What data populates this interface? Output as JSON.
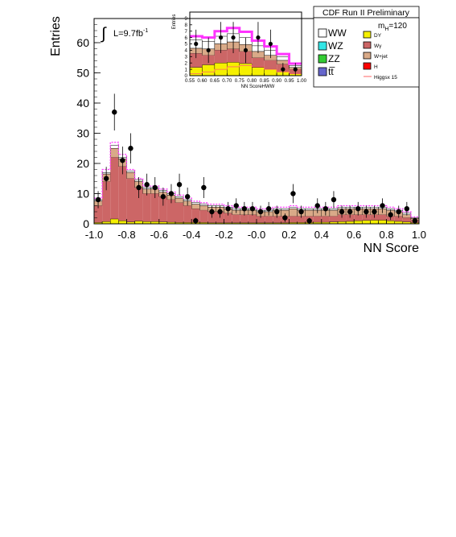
{
  "figure": {
    "header": "CDF Run II Preliminary",
    "mass_label_base": "m",
    "mass_label_sub": "H",
    "mass_label_value": "=120",
    "lumi_base": "L=9.7fb",
    "lumi_sup": "-1",
    "legend": [
      {
        "label": "WW",
        "color": "#ffffff"
      },
      {
        "label": "WZ",
        "color": "#33e6e6"
      },
      {
        "label": "ZZ",
        "color": "#33cc33"
      },
      {
        "label": "tt̅",
        "color": "#6666cc"
      },
      {
        "label": "DY",
        "color": "#f5f000"
      },
      {
        "label": "Wγ",
        "color": "#cc6666"
      },
      {
        "label": "W+jet",
        "color": "#d9aa88"
      },
      {
        "label": "H",
        "color": "#ff0000"
      },
      {
        "label": "Higgsx 15",
        "color": "#ff6666"
      }
    ]
  },
  "chart_data": [
    {
      "type": "bar",
      "xlabel": "NN Score",
      "ylabel": "Entries",
      "xlim": [
        -1.0,
        1.0
      ],
      "ylim": [
        0,
        68
      ],
      "x_ticks": [
        "-1.0",
        "-0.8",
        "-0.6",
        "-0.4",
        "-0.2",
        "-0.0",
        "0.2",
        "0.4",
        "0.6",
        "0.8",
        "1.0"
      ],
      "y_ticks": [
        "0",
        "10",
        "20",
        "30",
        "40",
        "50",
        "60"
      ],
      "bin_edges": [
        -1.0,
        -0.95,
        -0.9,
        -0.85,
        -0.8,
        -0.75,
        -0.7,
        -0.65,
        -0.6,
        -0.55,
        -0.5,
        -0.45,
        -0.4,
        -0.35,
        -0.3,
        -0.25,
        -0.2,
        -0.15,
        -0.1,
        -0.05,
        0.0,
        0.05,
        0.1,
        0.15,
        0.2,
        0.25,
        0.3,
        0.35,
        0.4,
        0.45,
        0.5,
        0.55,
        0.6,
        0.65,
        0.7,
        0.75,
        0.8,
        0.85,
        0.9,
        0.95,
        1.0
      ],
      "stack_totals": {
        "DY": [
          0.4,
          0.7,
          1.6,
          1.0,
          0.6,
          0.9,
          0.7,
          0.7,
          0.6,
          0.5,
          0.4,
          0.4,
          0.4,
          0.4,
          0.3,
          0.3,
          0.3,
          0.3,
          0.3,
          0.3,
          0.3,
          0.3,
          0.3,
          0.3,
          0.4,
          0.4,
          0.4,
          0.5,
          0.5,
          0.6,
          0.7,
          0.8,
          1.0,
          1.1,
          1.2,
          1.2,
          1.0,
          0.8,
          0.6,
          0.3
        ],
        "Wgamma": [
          6,
          14,
          22,
          19,
          15,
          12,
          10,
          10,
          9,
          8,
          7,
          6,
          5,
          4.5,
          4,
          4,
          3.5,
          3,
          3,
          3,
          2.5,
          2.5,
          2.5,
          2.5,
          2.5,
          2.5,
          2.5,
          2.5,
          2.5,
          2.5,
          3,
          3,
          3,
          3,
          3,
          3,
          2.5,
          2.5,
          2,
          1.2
        ],
        "Wjet": [
          7.5,
          16.5,
          25,
          21.5,
          17,
          14,
          11.5,
          11.5,
          10.5,
          9.5,
          8.5,
          7.5,
          6.5,
          6,
          5.5,
          5.5,
          5,
          4.5,
          4.5,
          4.5,
          4,
          4,
          4.5,
          4.5,
          5,
          4.5,
          4.5,
          4.5,
          4.5,
          4.5,
          5,
          5,
          5,
          5,
          5,
          5,
          4.5,
          4,
          3,
          1.8
        ],
        "total": [
          8,
          17,
          26,
          22,
          17.5,
          14.5,
          12,
          12,
          11,
          10,
          9,
          8,
          7,
          6.5,
          6,
          6,
          5.5,
          5,
          5,
          5,
          4.5,
          4.5,
          5,
          5,
          5.5,
          5,
          5,
          5,
          5,
          5,
          5.5,
          5.5,
          5.5,
          5.5,
          5.5,
          5.5,
          5,
          4.5,
          3.5,
          2
        ],
        "higgs_x15": [
          8.5,
          18,
          27,
          23,
          18,
          15,
          12.5,
          12.5,
          11.5,
          10.5,
          9.5,
          8.5,
          7.5,
          7,
          6.5,
          6.5,
          6,
          5.5,
          5.5,
          5.5,
          5,
          5,
          5.5,
          5.5,
          6,
          5.5,
          5.5,
          5.5,
          5.5,
          5.5,
          6,
          6,
          6,
          6,
          6,
          6,
          5.5,
          5,
          4,
          2.3
        ]
      },
      "data_points": {
        "x": [
          -0.975,
          -0.925,
          -0.875,
          -0.825,
          -0.775,
          -0.725,
          -0.675,
          -0.625,
          -0.575,
          -0.525,
          -0.475,
          -0.425,
          -0.375,
          -0.325,
          -0.275,
          -0.225,
          -0.175,
          -0.125,
          -0.075,
          -0.025,
          0.025,
          0.075,
          0.125,
          0.175,
          0.225,
          0.275,
          0.325,
          0.375,
          0.425,
          0.475,
          0.525,
          0.575,
          0.625,
          0.675,
          0.725,
          0.775,
          0.825,
          0.875,
          0.925,
          0.975
        ],
        "y": [
          8,
          15,
          37,
          21,
          25,
          12,
          13,
          12,
          9,
          10,
          13,
          9,
          1,
          12,
          4,
          4,
          5,
          6,
          5,
          5,
          4,
          5,
          4,
          2,
          10,
          4,
          1,
          6,
          5,
          8,
          4,
          4,
          5,
          4,
          4,
          6,
          3,
          4,
          5,
          1
        ]
      }
    },
    {
      "type": "bar",
      "xlabel": "NN ScoreHWW",
      "ylabel": "Entries",
      "xlim": [
        0.55,
        1.0
      ],
      "ylim": [
        0,
        10
      ],
      "x_ticks": [
        "0.55",
        "0.60",
        "0.65",
        "0.70",
        "0.75",
        "0.80",
        "0.85",
        "0.90",
        "0.95",
        "1.00"
      ],
      "y_ticks": [
        "0",
        "1",
        "2",
        "3",
        "4",
        "5",
        "6",
        "7",
        "8",
        "9"
      ],
      "bin_edges": [
        0.55,
        0.6,
        0.65,
        0.7,
        0.75,
        0.8,
        0.85,
        0.9,
        0.95,
        1.0
      ],
      "stack_totals": {
        "DY": [
          1.3,
          1.7,
          2.0,
          2.1,
          1.9,
          1.3,
          1.0,
          0.6,
          0.3
        ],
        "Wgamma": [
          3.5,
          3.2,
          4.0,
          4.2,
          3.8,
          2.8,
          2.4,
          1.8,
          1.0
        ],
        "Wjet": [
          4.3,
          4.2,
          5.0,
          5.3,
          4.9,
          3.8,
          3.2,
          2.4,
          1.3
        ],
        "total": [
          5.6,
          5.4,
          6.2,
          6.6,
          6.0,
          4.7,
          4.0,
          3.0,
          1.6
        ],
        "higgs_x15": [
          6.2,
          6.0,
          7.0,
          7.5,
          6.9,
          5.5,
          4.6,
          3.4,
          1.9
        ],
        "H_scaled_line": [
          0.3,
          0.6,
          1.0,
          1.4,
          1.6,
          1.4,
          1.0,
          0.6,
          0.3
        ]
      },
      "data_points": {
        "x": [
          0.575,
          0.625,
          0.675,
          0.725,
          0.775,
          0.825,
          0.875,
          0.925,
          0.975
        ],
        "y": [
          5,
          4,
          6,
          6,
          4,
          6,
          5,
          1,
          1
        ]
      }
    }
  ]
}
